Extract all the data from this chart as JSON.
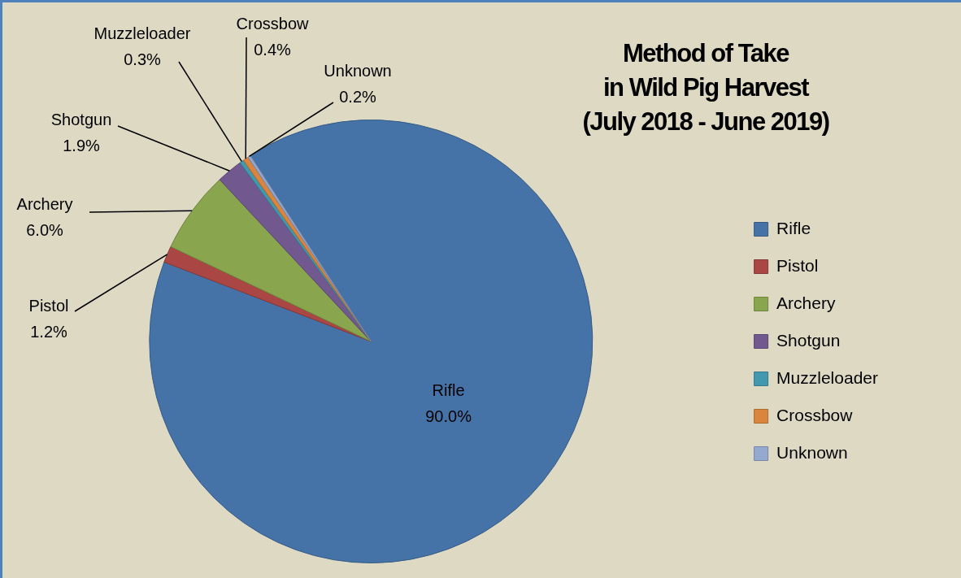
{
  "chart_data": {
    "type": "pie",
    "title": "Method of Take\nin Wild Pig Harvest\n(July 2018 - June 2019)",
    "categories": [
      "Rifle",
      "Pistol",
      "Archery",
      "Shotgun",
      "Muzzleloader",
      "Crossbow",
      "Unknown"
    ],
    "values": [
      90.0,
      1.2,
      6.0,
      1.9,
      0.3,
      0.4,
      0.2
    ],
    "value_labels": [
      "90.0%",
      "1.2%",
      "6.0%",
      "1.9%",
      "0.3%",
      "0.4%",
      "0.2%"
    ],
    "colors": [
      "#4572a7",
      "#aa4643",
      "#89a54e",
      "#71588f",
      "#4198af",
      "#db843d",
      "#93a9cf"
    ],
    "legend": "right"
  }
}
